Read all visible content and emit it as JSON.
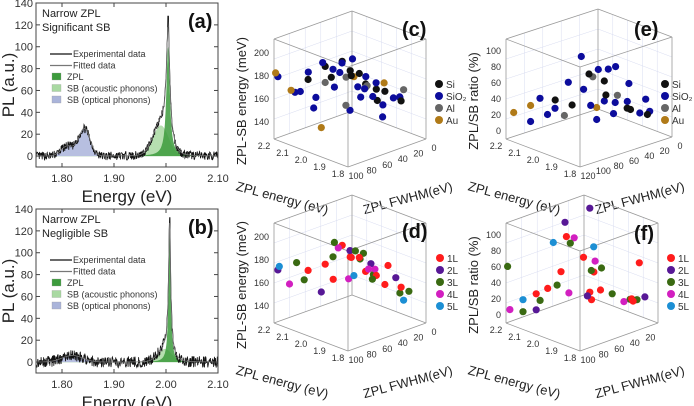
{
  "colors": {
    "zpl": "#3c9b3c",
    "acoustic": "#a9d9a2",
    "optical": "#aab4da",
    "exp": "#111111",
    "fit": "#777777",
    "Si": "#111111",
    "SiO2": "#0c0c9c",
    "Al": "#666666",
    "Au": "#b07a18",
    "1L": "#ff1c1c",
    "2L": "#571896",
    "3L": "#3a6a12",
    "4L": "#d21fc0",
    "5L": "#1c8fd4"
  },
  "chart_data": [
    {
      "panel": "(a)",
      "type": "area",
      "xlabel": "Energy (eV)",
      "ylabel": "PL (a.u.)",
      "xlim": [
        1.75,
        2.1
      ],
      "ylim": [
        -10,
        140
      ],
      "xticks": [
        "1.80",
        "1.90",
        "2.00",
        "2.10"
      ],
      "yticks": [
        "0",
        "20",
        "40",
        "60",
        "80",
        "100",
        "120",
        "140"
      ],
      "notes": [
        "Narrow ZPL",
        "Significant SB"
      ],
      "legend": [
        "Experimental data",
        "Fitted data",
        "ZPL",
        "SB (acoustic phonons)",
        "SB (optical phonons)"
      ],
      "model": {
        "zpl": {
          "center": 2.004,
          "amp": 100,
          "hwhm": 0.004
        },
        "acoustic": {
          "center": 1.99,
          "amp": 28,
          "sigma": 0.015
        },
        "optical": [
          {
            "center": 1.81,
            "amp": 9,
            "sigma": 0.012
          },
          {
            "center": 1.843,
            "amp": 25,
            "sigma": 0.011
          }
        ],
        "noise": 3,
        "exp_peak": 128
      }
    },
    {
      "panel": "(b)",
      "type": "area",
      "xlabel": "Energy (eV)",
      "ylabel": "PL (a.u.)",
      "xlim": [
        1.75,
        2.1
      ],
      "ylim": [
        -10,
        140
      ],
      "xticks": [
        "1.80",
        "1.90",
        "2.00",
        "2.10"
      ],
      "yticks": [
        "0",
        "20",
        "40",
        "60",
        "80",
        "100",
        "120",
        "140"
      ],
      "notes": [
        "Narrow ZPL",
        "Negligible SB"
      ],
      "legend": [
        "Experimental data",
        "Fitted data",
        "ZPL",
        "SB (acoustic phonons)",
        "SB (optical phonons)"
      ],
      "model": {
        "zpl": {
          "center": 2.007,
          "amp": 118,
          "hwhm": 0.0025
        },
        "acoustic": {
          "center": 1.998,
          "amp": 12,
          "sigma": 0.013
        },
        "optical": [
          {
            "center": 1.82,
            "amp": 6,
            "sigma": 0.02
          }
        ],
        "noise": 4,
        "exp_peak": 132
      }
    },
    {
      "panel": "(c)",
      "type": "scatter",
      "xlabel": "ZPL energy (eV)",
      "ylabel": "ZPL FWHM(eV)",
      "zlabel": "ZPL-SB energy (meV)",
      "xlim": [
        1.8,
        2.2
      ],
      "ylim": [
        0,
        100
      ],
      "zlim": [
        125,
        212
      ],
      "xticks": [
        "1.8",
        "1.9",
        "2.0",
        "2.1",
        "2.2"
      ],
      "yticks": [
        "100",
        "80",
        "60",
        "40",
        "20",
        "0"
      ],
      "zticks": [
        "140",
        "160",
        "180",
        "200"
      ],
      "series": [
        {
          "name": "Si",
          "key": "Si",
          "points": [
            [
              2.0,
              60,
              195
            ],
            [
              2.05,
              70,
              190
            ],
            [
              1.95,
              50,
              185
            ],
            [
              2.1,
              80,
              178
            ],
            [
              1.9,
              40,
              172
            ],
            [
              2.0,
              30,
              168
            ],
            [
              1.85,
              20,
              160
            ],
            [
              2.02,
              45,
              182
            ],
            [
              1.98,
              10,
              158
            ],
            [
              2.08,
              55,
              175
            ],
            [
              1.93,
              65,
              188
            ],
            [
              2.0,
              15,
              150
            ]
          ]
        },
        {
          "name": "SiO₂",
          "key": "SiO2",
          "points": [
            [
              2.2,
              95,
              178
            ],
            [
              2.1,
              90,
              170
            ],
            [
              2.0,
              85,
              200
            ],
            [
              1.95,
              75,
              192
            ],
            [
              2.05,
              60,
              185
            ],
            [
              1.9,
              55,
              176
            ],
            [
              2.0,
              40,
              168
            ],
            [
              1.85,
              30,
              165
            ],
            [
              1.9,
              10,
              158
            ],
            [
              2.1,
              70,
              160
            ],
            [
              2.0,
              50,
              150
            ],
            [
              1.95,
              20,
              140
            ],
            [
              2.05,
              35,
              188
            ],
            [
              1.98,
              65,
              196
            ],
            [
              2.15,
              85,
              165
            ],
            [
              1.88,
              45,
              180
            ],
            [
              2.02,
              25,
              172
            ],
            [
              1.92,
              5,
              155
            ],
            [
              2.07,
              80,
              155
            ],
            [
              1.97,
              15,
              148
            ],
            [
              2.12,
              75,
              182
            ],
            [
              1.9,
              60,
              170
            ],
            [
              2.0,
              70,
              175
            ],
            [
              1.94,
              35,
              162
            ]
          ]
        },
        {
          "name": "Al",
          "key": "Al",
          "points": [
            [
              2.0,
              55,
              180
            ],
            [
              1.95,
              40,
              172
            ],
            [
              2.05,
              70,
              176
            ],
            [
              1.9,
              5,
              163
            ],
            [
              2.0,
              30,
              165
            ],
            [
              1.98,
              60,
              158
            ]
          ]
        },
        {
          "name": "Au",
          "key": "Au",
          "points": [
            [
              2.2,
              98,
              182
            ],
            [
              2.15,
              90,
              168
            ],
            [
              2.0,
              45,
              178
            ],
            [
              1.9,
              30,
              175
            ],
            [
              2.05,
              75,
              138
            ]
          ]
        }
      ]
    },
    {
      "panel": "(e)",
      "type": "scatter",
      "xlabel": "ZPL energy (eV)",
      "ylabel": "ZPL FWHM(eV)",
      "zlabel": "ZPL/SB ratio (%)",
      "xlim": [
        1.8,
        2.2
      ],
      "ylim": [
        0,
        120
      ],
      "zlim": [
        -10,
        115
      ],
      "xticks": [
        "1.8",
        "1.9",
        "2.0",
        "2.1",
        "2.2"
      ],
      "yticks": [
        "120",
        "100",
        "80",
        "60",
        "40",
        "20",
        "0"
      ],
      "zticks": [
        "0",
        "20",
        "40",
        "60",
        "80",
        "100"
      ],
      "series": [
        {
          "name": "Si",
          "key": "Si",
          "points": [
            [
              2.0,
              60,
              70
            ],
            [
              1.95,
              50,
              45
            ],
            [
              2.05,
              70,
              30
            ],
            [
              1.9,
              30,
              25
            ],
            [
              2.0,
              40,
              55
            ],
            [
              1.85,
              20,
              20
            ],
            [
              2.1,
              80,
              35
            ],
            [
              1.98,
              15,
              15
            ]
          ]
        },
        {
          "name": "SiO₂",
          "key": "SiO2",
          "points": [
            [
              2.0,
              70,
              95
            ],
            [
              1.95,
              60,
              80
            ],
            [
              2.05,
              75,
              60
            ],
            [
              1.9,
              50,
              40
            ],
            [
              2.0,
              40,
              30
            ],
            [
              1.85,
              30,
              25
            ],
            [
              2.1,
              90,
              20
            ],
            [
              2.15,
              100,
              10
            ],
            [
              1.95,
              20,
              50
            ],
            [
              2.0,
              10,
              20
            ],
            [
              1.9,
              5,
              15
            ],
            [
              2.05,
              55,
              45
            ],
            [
              1.97,
              65,
              35
            ],
            [
              2.02,
              30,
              65
            ],
            [
              1.93,
              45,
              22
            ],
            [
              2.08,
              85,
              28
            ],
            [
              1.88,
              15,
              35
            ],
            [
              2.0,
              50,
              10
            ],
            [
              2.12,
              95,
              40
            ],
            [
              1.96,
              35,
              75
            ]
          ]
        },
        {
          "name": "Al",
          "key": "Al",
          "points": [
            [
              2.0,
              55,
              65
            ],
            [
              1.95,
              35,
              40
            ],
            [
              2.05,
              80,
              20
            ]
          ]
        },
        {
          "name": "Au",
          "key": "Au",
          "points": [
            [
              2.2,
              110,
              20
            ],
            [
              2.15,
              100,
              30
            ],
            [
              2.0,
              50,
              25
            ]
          ]
        }
      ]
    },
    {
      "panel": "(d)",
      "type": "scatter",
      "xlabel": "ZPL energy (eV)",
      "ylabel": "ZPL FWHM(eV)",
      "zlabel": "ZPL-SB energy (meV)",
      "xlim": [
        1.8,
        2.2
      ],
      "ylim": [
        0,
        100
      ],
      "zlim": [
        125,
        212
      ],
      "xticks": [
        "1.8",
        "1.9",
        "2.0",
        "2.1",
        "2.2"
      ],
      "yticks": [
        "100",
        "80",
        "60",
        "40",
        "20",
        "0"
      ],
      "zticks": [
        "140",
        "160",
        "180",
        "200"
      ],
      "series": [
        {
          "name": "1L",
          "key": "1L",
          "points": [
            [
              2.0,
              60,
              195
            ],
            [
              1.95,
              50,
              185
            ],
            [
              2.05,
              70,
              178
            ],
            [
              1.9,
              40,
              170
            ],
            [
              2.0,
              30,
              165
            ],
            [
              1.85,
              20,
              158
            ],
            [
              2.1,
              80,
              172
            ],
            [
              1.98,
              10,
              150
            ],
            [
              2.02,
              45,
              180
            ],
            [
              1.93,
              65,
              190
            ],
            [
              2.07,
              55,
              160
            ],
            [
              1.9,
              25,
              175
            ]
          ]
        },
        {
          "name": "2L",
          "key": "2L",
          "points": [
            [
              2.2,
              95,
              170
            ],
            [
              2.0,
              50,
              188
            ],
            [
              1.9,
              15,
              162
            ],
            [
              2.05,
              75,
              155
            ],
            [
              1.95,
              35,
              176
            ]
          ]
        },
        {
          "name": "3L",
          "key": "3L",
          "points": [
            [
              2.0,
              70,
              200
            ],
            [
              1.95,
              55,
              192
            ],
            [
              2.05,
              60,
              182
            ],
            [
              1.9,
              45,
              168
            ],
            [
              2.0,
              20,
              160
            ],
            [
              1.85,
              10,
              152
            ],
            [
              2.1,
              85,
              165
            ],
            [
              1.97,
              40,
              185
            ],
            [
              2.03,
              30,
              174
            ],
            [
              1.92,
              5,
              145
            ],
            [
              2.12,
              90,
              180
            ]
          ]
        },
        {
          "name": "4L",
          "key": "4L",
          "points": [
            [
              2.15,
              92,
              160
            ],
            [
              2.0,
              65,
              194
            ],
            [
              1.95,
              30,
              170
            ],
            [
              1.9,
              50,
              178
            ],
            [
              2.05,
              40,
              158
            ]
          ]
        },
        {
          "name": "5L",
          "key": "5L",
          "points": [
            [
              2.18,
              98,
              175
            ],
            [
              1.9,
              5,
              140
            ],
            [
              2.0,
              45,
              165
            ]
          ]
        }
      ]
    },
    {
      "panel": "(f)",
      "type": "scatter",
      "xlabel": "ZPL energy (eV)",
      "ylabel": "ZPL FWHM(eV)",
      "zlabel": "ZPL/SB ratio (%)",
      "xlim": [
        1.8,
        2.2
      ],
      "ylim": [
        0,
        100
      ],
      "zlim": [
        -10,
        115
      ],
      "xticks": [
        "1.8",
        "1.9",
        "2.0",
        "2.1",
        "2.2"
      ],
      "yticks": [
        "100",
        "80",
        "60",
        "40",
        "20"
      ],
      "zticks": [
        "0",
        "20",
        "40",
        "60",
        "80",
        "100"
      ],
      "series": [
        {
          "name": "1L",
          "key": "1L",
          "points": [
            [
              2.0,
              70,
              105
            ],
            [
              1.95,
              60,
              80
            ],
            [
              2.05,
              65,
              55
            ],
            [
              1.9,
              50,
              40
            ],
            [
              2.0,
              40,
              25
            ],
            [
              1.85,
              20,
              20
            ],
            [
              2.1,
              85,
              30
            ],
            [
              1.9,
              10,
              15
            ],
            [
              2.02,
              30,
              45
            ],
            [
              1.97,
              45,
              20
            ],
            [
              1.88,
              5,
              60
            ],
            [
              2.08,
              75,
              35
            ]
          ]
        },
        {
          "name": "2L",
          "key": "2L",
          "points": [
            [
              2.0,
              40,
              130
            ],
            [
              2.05,
              60,
              115
            ],
            [
              2.1,
              85,
              10
            ],
            [
              1.85,
              5,
              20
            ],
            [
              1.95,
              55,
              30
            ]
          ]
        },
        {
          "name": "3L",
          "key": "3L",
          "points": [
            [
              2.0,
              65,
              95
            ],
            [
              2.2,
              98,
              60
            ],
            [
              1.95,
              50,
              60
            ],
            [
              2.05,
              70,
              40
            ],
            [
              1.9,
              35,
              30
            ],
            [
              2.0,
              25,
              50
            ],
            [
              1.85,
              15,
              20
            ],
            [
              2.1,
              80,
              20
            ],
            [
              1.93,
              5,
              10
            ],
            [
              2.15,
              90,
              5
            ]
          ]
        },
        {
          "name": "4L",
          "key": "4L",
          "points": [
            [
              2.0,
              60,
              100
            ],
            [
              1.95,
              45,
              70
            ],
            [
              2.2,
              95,
              5
            ],
            [
              1.9,
              20,
              15
            ],
            [
              2.05,
              55,
              25
            ]
          ]
        },
        {
          "name": "5L",
          "key": "5L",
          "points": [
            [
              2.05,
              75,
              95
            ],
            [
              2.0,
              35,
              80
            ],
            [
              2.15,
              90,
              20
            ]
          ]
        }
      ]
    }
  ]
}
